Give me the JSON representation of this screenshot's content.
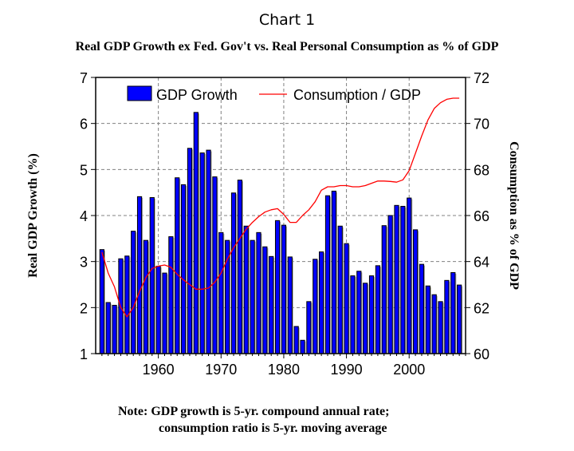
{
  "header": {
    "title": "Chart 1",
    "subtitle": "Real GDP Growth ex Fed. Gov't vs. Real Personal Consumption as % of GDP"
  },
  "notes": {
    "line1": "Note: GDP growth is 5-yr. compound annual rate;",
    "line2": "consumption ratio is 5-yr. moving average"
  },
  "chart_data": {
    "type": "bar",
    "title": "Chart 1",
    "subtitle": "Real GDP Growth ex Fed. Gov't vs. Real Personal Consumption as % of GDP",
    "xlabel": "",
    "ylabel": "Real GDP Growth (%)",
    "y2label": "Consumption as % of GDP",
    "ylim": [
      1,
      7
    ],
    "y2lim": [
      60,
      72
    ],
    "xlim": [
      1950,
      2009
    ],
    "yticks": [
      1,
      2,
      3,
      4,
      5,
      6,
      7
    ],
    "y2ticks": [
      60,
      62,
      64,
      66,
      68,
      70,
      72
    ],
    "xticks": [
      1960,
      1970,
      1980,
      1990,
      2000
    ],
    "grid": true,
    "legend_position": "top",
    "colors": {
      "bars": "#0000ff",
      "bar_outline": "#000000",
      "line": "#ff0000",
      "grid": "#808080"
    },
    "legend": [
      "GDP Growth",
      "Consumption / GDP"
    ],
    "x": [
      1951,
      1952,
      1953,
      1954,
      1955,
      1956,
      1957,
      1958,
      1959,
      1960,
      1961,
      1962,
      1963,
      1964,
      1965,
      1966,
      1967,
      1968,
      1969,
      1970,
      1971,
      1972,
      1973,
      1974,
      1975,
      1976,
      1977,
      1978,
      1979,
      1980,
      1981,
      1982,
      1983,
      1984,
      1985,
      1986,
      1987,
      1988,
      1989,
      1990,
      1991,
      1992,
      1993,
      1994,
      1995,
      1996,
      1997,
      1998,
      1999,
      2000,
      2001,
      2002,
      2003,
      2004,
      2005,
      2006,
      2007,
      2008
    ],
    "series": [
      {
        "name": "GDP Growth",
        "type": "bar",
        "axis": "left",
        "values": [
          3.26,
          2.11,
          2.05,
          3.06,
          3.12,
          3.66,
          4.41,
          3.46,
          4.39,
          2.9,
          2.75,
          3.54,
          4.82,
          4.67,
          5.46,
          6.24,
          5.36,
          5.42,
          4.84,
          3.63,
          3.46,
          4.49,
          4.77,
          3.77,
          3.46,
          3.63,
          3.32,
          3.11,
          3.89,
          3.79,
          3.1,
          1.59,
          1.29,
          2.13,
          3.05,
          3.21,
          4.43,
          4.53,
          3.77,
          3.39,
          2.69,
          2.79,
          2.53,
          2.69,
          2.91,
          3.78,
          4.0,
          4.22,
          4.2,
          4.38,
          3.69,
          2.94,
          2.47,
          2.28,
          2.13,
          2.59,
          2.76,
          2.49
        ]
      },
      {
        "name": "Consumption / GDP",
        "type": "line",
        "axis": "right",
        "values": [
          64.4,
          63.5,
          62.9,
          62.0,
          61.6,
          62.0,
          62.7,
          63.3,
          63.7,
          63.8,
          63.85,
          63.75,
          63.45,
          63.2,
          63.0,
          62.8,
          62.8,
          62.85,
          63.1,
          63.5,
          64.1,
          64.6,
          65.0,
          65.4,
          65.7,
          65.95,
          66.15,
          66.25,
          66.3,
          66.05,
          65.7,
          65.7,
          66.0,
          66.25,
          66.6,
          67.1,
          67.25,
          67.25,
          67.3,
          67.3,
          67.25,
          67.25,
          67.3,
          67.4,
          67.5,
          67.5,
          67.48,
          67.45,
          67.55,
          67.95,
          68.7,
          69.45,
          70.15,
          70.65,
          70.9,
          71.05,
          71.1,
          71.1
        ]
      }
    ]
  }
}
